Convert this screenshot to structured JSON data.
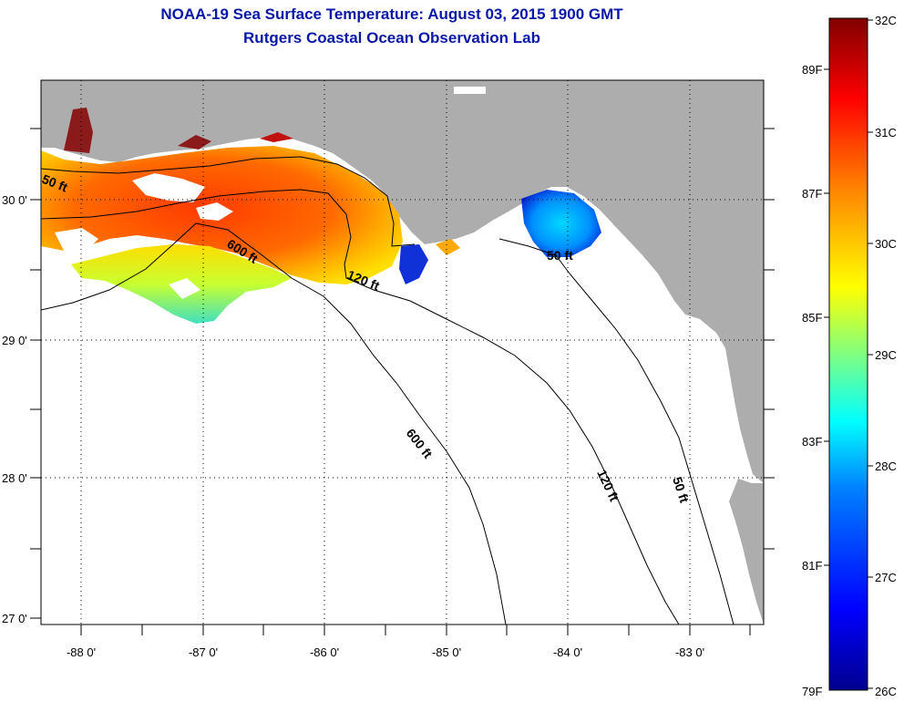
{
  "header": {
    "title": "NOAA-19 Sea Surface Temperature:  August 03, 2015 1900 GMT",
    "subtitle": "Rutgers Coastal Ocean Observation Lab"
  },
  "map": {
    "lon_labels": [
      "-88 0'",
      "-87 0'",
      "-86 0'",
      "-85 0'",
      "-84 0'",
      "-83 0'"
    ],
    "lat_labels": [
      "30 0'",
      "29 0'",
      "28 0'",
      "27 0'"
    ],
    "contour_labels": {
      "c50_west": "50 ft",
      "c600_upper": "600 ft",
      "c120_mid": "120 ft",
      "c50_east": "50 ft",
      "c600_lower": "600 ft",
      "c120_lower": "120 ft",
      "c50_lower": "50 ft"
    },
    "colors": {
      "land": "#adadad",
      "water": "#ffffff",
      "contour": "#000000"
    }
  },
  "colorbar": {
    "celsius_labels": [
      "32C",
      "31C",
      "30C",
      "29C",
      "28C",
      "27C",
      "26C"
    ],
    "fahrenheit_labels": [
      "89F",
      "87F",
      "85F",
      "83F",
      "81F",
      "79F"
    ],
    "min_c": 26,
    "max_c": 32,
    "colors": [
      "#00008f",
      "#0000ff",
      "#0080ff",
      "#00ffff",
      "#80ff80",
      "#ffff00",
      "#ff8000",
      "#ff0000",
      "#800000"
    ]
  }
}
